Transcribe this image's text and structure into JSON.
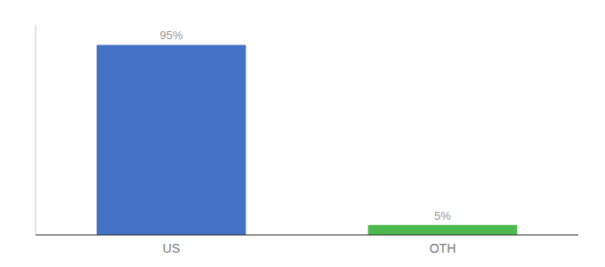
{
  "chart_data": {
    "type": "bar",
    "categories": [
      "US",
      "OTH"
    ],
    "values": [
      95,
      5
    ],
    "value_labels": [
      "95%",
      "5%"
    ],
    "colors": [
      "#4472c4",
      "#4db84d"
    ],
    "ylim": [
      0,
      105
    ],
    "data_labels": true,
    "tick_labels": "x",
    "grid": false
  }
}
